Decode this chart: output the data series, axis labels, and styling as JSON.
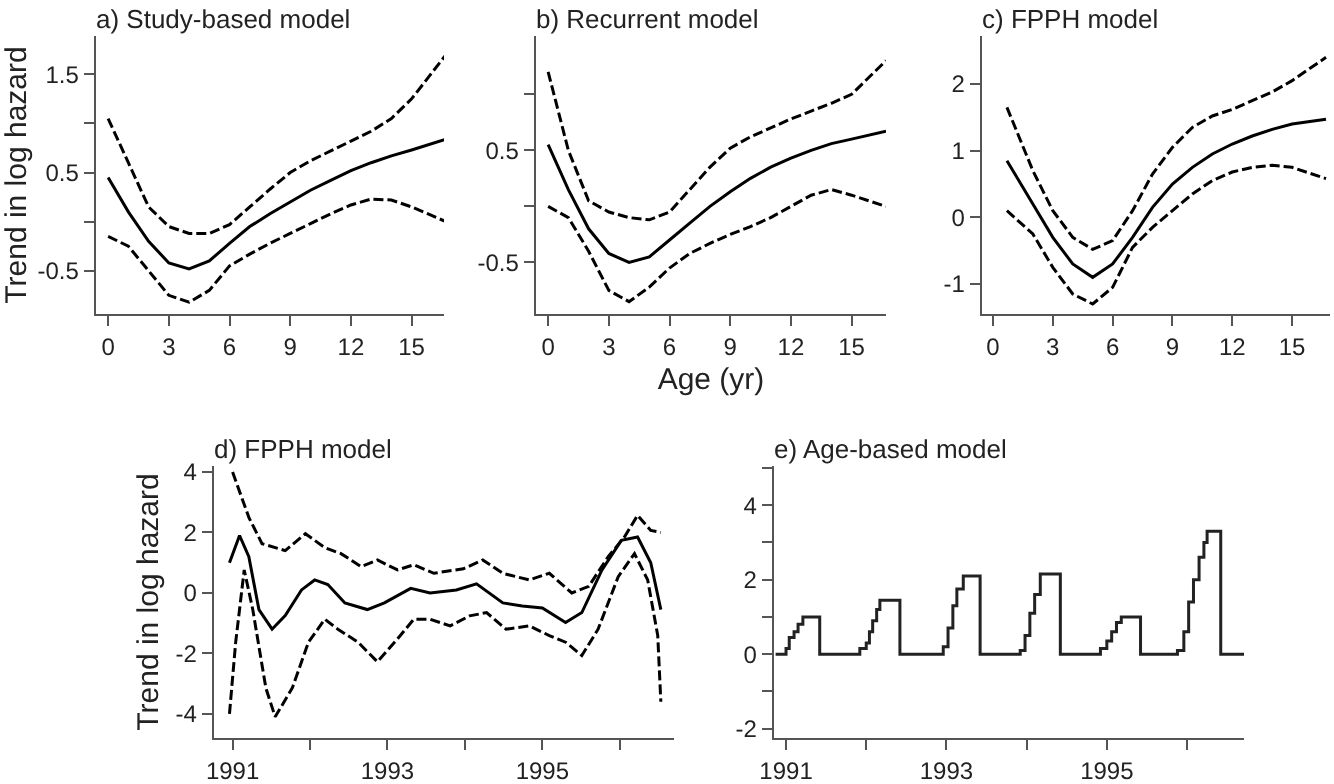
{
  "chart_data": [
    {
      "type": "line",
      "title": "a) Study-based model",
      "ylabel": "Trend in log hazard",
      "x": [
        0,
        1,
        2,
        3,
        4,
        5,
        6,
        7,
        8,
        9,
        10,
        11,
        12,
        13,
        14,
        15,
        16.7
      ],
      "xlim": [
        -0.6,
        16.7
      ],
      "xticks": [
        0,
        3,
        6,
        9,
        12,
        15
      ],
      "ylim": [
        -0.94,
        1.89
      ],
      "yticks": [
        -0.5,
        {
          "value": 0,
          "label": null
        },
        0.5,
        {
          "value": 1,
          "label": null
        },
        1.5
      ],
      "grid": false,
      "marker": "none",
      "series": [
        {
          "color": "#000000",
          "line_style": "solid",
          "values": [
            0.45,
            0.1,
            -0.2,
            -0.42,
            -0.48,
            -0.4,
            -0.22,
            -0.05,
            0.08,
            0.2,
            0.32,
            0.42,
            0.52,
            0.6,
            0.67,
            0.73,
            0.84
          ]
        },
        {
          "color": "#000000",
          "line_style": "dashed",
          "values": [
            1.05,
            0.6,
            0.15,
            -0.05,
            -0.12,
            -0.12,
            -0.03,
            0.15,
            0.33,
            0.5,
            0.62,
            0.72,
            0.82,
            0.92,
            1.05,
            1.25,
            1.7
          ]
        },
        {
          "color": "#000000",
          "line_style": "dashed",
          "values": [
            -0.15,
            -0.25,
            -0.5,
            -0.75,
            -0.82,
            -0.7,
            -0.45,
            -0.33,
            -0.22,
            -0.12,
            -0.02,
            0.08,
            0.17,
            0.23,
            0.22,
            0.15,
            0.0
          ]
        }
      ]
    },
    {
      "type": "line",
      "title": "b) Recurrent model",
      "xlabel": "Age (yr)",
      "x": [
        0,
        1,
        2,
        3,
        4,
        5,
        6,
        7,
        8,
        9,
        10,
        11,
        12,
        13,
        14,
        15,
        16.7
      ],
      "xlim": [
        -0.6,
        16.7
      ],
      "xticks": [
        0,
        3,
        6,
        9,
        12,
        15
      ],
      "ylim": [
        -0.96,
        1.52
      ],
      "yticks": [
        -0.5,
        {
          "value": 0,
          "label": null
        },
        0.5,
        {
          "value": 1,
          "label": null
        }
      ],
      "grid": false,
      "marker": "none",
      "series": [
        {
          "color": "#000000",
          "line_style": "solid",
          "values": [
            0.55,
            0.15,
            -0.2,
            -0.42,
            -0.5,
            -0.45,
            -0.3,
            -0.15,
            0.0,
            0.13,
            0.25,
            0.35,
            0.43,
            0.5,
            0.56,
            0.6,
            0.67
          ]
        },
        {
          "color": "#000000",
          "line_style": "dashed",
          "values": [
            1.2,
            0.5,
            0.05,
            -0.05,
            -0.1,
            -0.12,
            -0.05,
            0.15,
            0.35,
            0.52,
            0.62,
            0.7,
            0.78,
            0.85,
            0.92,
            1.0,
            1.3
          ]
        },
        {
          "color": "#000000",
          "line_style": "dashed",
          "values": [
            0.0,
            -0.1,
            -0.4,
            -0.75,
            -0.85,
            -0.72,
            -0.55,
            -0.42,
            -0.33,
            -0.25,
            -0.18,
            -0.1,
            0.0,
            0.1,
            0.15,
            0.1,
            0.0
          ]
        }
      ]
    },
    {
      "type": "line",
      "title": "c) FPPH model",
      "x": [
        0.7,
        2,
        3,
        4,
        5,
        6,
        7,
        8,
        9,
        10,
        11,
        12,
        13,
        14,
        15,
        16.7
      ],
      "xlim": [
        -0.55,
        16.9
      ],
      "xticks": [
        0,
        3,
        6,
        9,
        12,
        15
      ],
      "ylim": [
        -1.45,
        2.72
      ],
      "yticks": [
        -1,
        0,
        1,
        2
      ],
      "grid": false,
      "marker": "none",
      "series": [
        {
          "color": "#000000",
          "line_style": "solid",
          "values": [
            0.85,
            0.2,
            -0.3,
            -0.7,
            -0.9,
            -0.7,
            -0.3,
            0.15,
            0.5,
            0.75,
            0.95,
            1.1,
            1.22,
            1.32,
            1.4,
            1.47
          ]
        },
        {
          "color": "#000000",
          "line_style": "dashed",
          "values": [
            1.65,
            0.7,
            0.1,
            -0.3,
            -0.48,
            -0.35,
            0.1,
            0.65,
            1.05,
            1.35,
            1.52,
            1.62,
            1.75,
            1.88,
            2.05,
            2.4
          ]
        },
        {
          "color": "#000000",
          "line_style": "dashed",
          "values": [
            0.1,
            -0.25,
            -0.75,
            -1.15,
            -1.3,
            -1.05,
            -0.45,
            -0.15,
            0.1,
            0.35,
            0.55,
            0.68,
            0.75,
            0.78,
            0.75,
            0.58
          ]
        }
      ]
    },
    {
      "type": "line",
      "title": "d) FPPH model",
      "ylabel": "Trend in log hazard",
      "xlim": [
        1990.76,
        1996.7
      ],
      "xticks": [
        1991,
        {
          "value": 1992,
          "label": null
        },
        1993,
        {
          "value": 1994,
          "label": null
        },
        1995,
        {
          "value": 1996,
          "label": null
        }
      ],
      "ylim": [
        -4.8,
        4.2
      ],
      "yticks": [
        -4,
        -2,
        0,
        2,
        4
      ],
      "grid": false,
      "marker": "none",
      "series": [
        {
          "color": "#000000",
          "line_style": "solid",
          "x": [
            1990.96,
            1991.09,
            1991.21,
            1991.34,
            1991.51,
            1991.68,
            1991.89,
            1992.06,
            1992.23,
            1992.45,
            1992.74,
            1992.96,
            1993.3,
            1993.55,
            1993.89,
            1994.15,
            1994.49,
            1994.74,
            1995,
            1995.3,
            1995.51,
            1995.77,
            1996.02,
            1996.23,
            1996.4,
            1996.53
          ],
          "values": [
            1.0,
            1.9,
            1.2,
            -0.55,
            -1.2,
            -0.75,
            0.1,
            0.43,
            0.28,
            -0.33,
            -0.55,
            -0.33,
            0.15,
            0,
            0.1,
            0.3,
            -0.33,
            -0.43,
            -0.5,
            -0.98,
            -0.65,
            0.76,
            1.74,
            1.85,
            1.0,
            -0.55
          ]
        },
        {
          "color": "#000000",
          "line_style": "dashed",
          "x": [
            1991,
            1991.21,
            1991.38,
            1991.68,
            1991.94,
            1992.19,
            1992.4,
            1992.66,
            1992.87,
            1993.13,
            1993.34,
            1993.6,
            1993.98,
            1994.23,
            1994.49,
            1994.83,
            1995.09,
            1995.38,
            1995.6,
            1995.85,
            1996.06,
            1996.23,
            1996.4,
            1996.53
          ],
          "values": [
            4.0,
            2.5,
            1.63,
            1.4,
            1.96,
            1.5,
            1.3,
            0.87,
            1.09,
            0.76,
            0.93,
            0.65,
            0.8,
            1.09,
            0.65,
            0.43,
            0.65,
            0,
            0.22,
            1.2,
            1.85,
            2.57,
            2.07,
            2.0
          ]
        },
        {
          "color": "#000000",
          "line_style": "dashed",
          "x": [
            1990.96,
            1991.04,
            1991.15,
            1991.26,
            1991.43,
            1991.55,
            1991.77,
            1991.98,
            1992.19,
            1992.36,
            1992.62,
            1992.87,
            1993.13,
            1993.34,
            1993.55,
            1993.81,
            1994.06,
            1994.28,
            1994.53,
            1994.83,
            1995.09,
            1995.3,
            1995.51,
            1995.72,
            1995.98,
            1996.19,
            1996.36,
            1996.49,
            1996.53
          ],
          "values": [
            -4.0,
            -1.63,
            0.76,
            -0.54,
            -3.15,
            -4.1,
            -3.15,
            -1.63,
            -0.87,
            -1.2,
            -1.63,
            -2.28,
            -1.52,
            -0.87,
            -0.87,
            -1.09,
            -0.76,
            -0.65,
            -1.2,
            -1.09,
            -1.41,
            -1.63,
            -2.07,
            -1.2,
            0.54,
            1.3,
            0.43,
            -1.41,
            -3.6
          ]
        }
      ]
    },
    {
      "type": "step",
      "title": "e) Age-based model",
      "xlim": [
        1990.85,
        1996.71
      ],
      "xticks": [
        1991,
        {
          "value": 1992,
          "label": null
        },
        1993,
        {
          "value": 1994,
          "label": null
        },
        1995,
        {
          "value": 1996,
          "label": null
        }
      ],
      "ylim": [
        -2.25,
        5.05
      ],
      "yticks": [
        -2,
        {
          "value": -1,
          "label": null
        },
        0,
        {
          "value": 1,
          "label": null
        },
        2,
        {
          "value": 3,
          "label": null
        },
        4,
        {
          "value": 5,
          "label": null
        }
      ],
      "grid": false,
      "marker": "none",
      "series": [
        {
          "color": "#222222",
          "line_style": "solid",
          "x": [
            1990.87,
            1991.0,
            1991.04,
            1991.1,
            1991.15,
            1991.21,
            1991.42,
            1991.92,
            1992.0,
            1992.04,
            1992.08,
            1992.13,
            1992.17,
            1992.42,
            1992.96,
            1993.02,
            1993.08,
            1993.13,
            1993.21,
            1993.42,
            1993.92,
            1993.98,
            1994.04,
            1994.1,
            1994.17,
            1994.42,
            1994.92,
            1995.0,
            1995.06,
            1995.12,
            1995.18,
            1995.42,
            1995.88,
            1995.96,
            1996.02,
            1996.08,
            1996.15,
            1996.21,
            1996.25,
            1996.42,
            1996.71
          ],
          "values": [
            0,
            0.15,
            0.45,
            0.6,
            0.8,
            1.0,
            0,
            0.15,
            0.3,
            0.6,
            0.9,
            1.2,
            1.45,
            0,
            0.2,
            0.7,
            1.3,
            1.75,
            2.1,
            0,
            0.1,
            0.5,
            1.1,
            1.6,
            2.15,
            0,
            0.15,
            0.35,
            0.6,
            0.85,
            1.0,
            0,
            0.1,
            0.6,
            1.4,
            2.0,
            2.6,
            3.0,
            3.3,
            0,
            0
          ]
        }
      ]
    }
  ]
}
